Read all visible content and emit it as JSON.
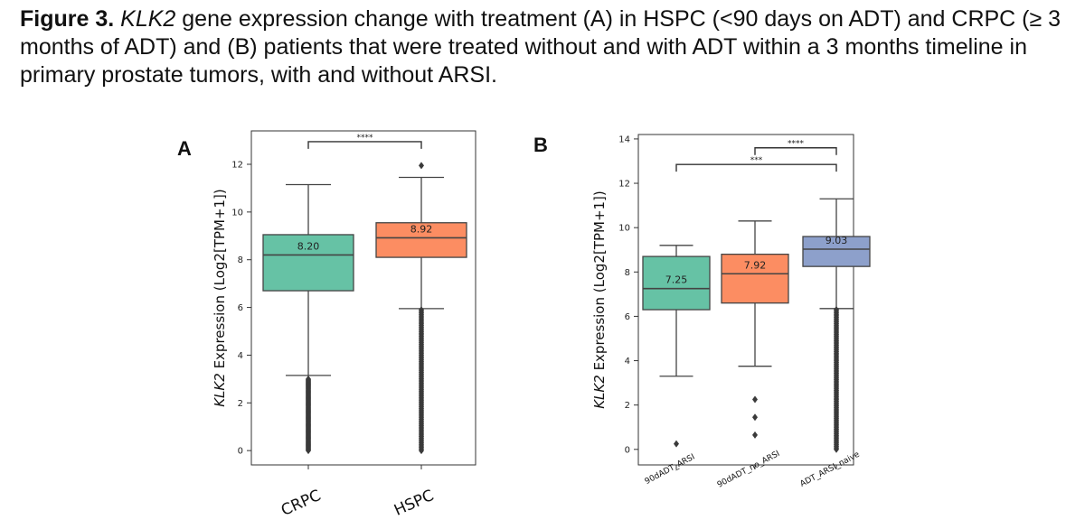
{
  "caption": {
    "lead": "Figure 3.",
    "gene": "KLK2",
    "text": " gene expression change with treatment (A) in HSPC (<90 days on ADT) and CRPC (≥ 3 months of ADT) and (B) patients that were treated without and with ADT within a 3 months timeline in primary prostate tumors, with and without ARSI."
  },
  "chart_data": [
    {
      "type": "box",
      "panel_label": "A",
      "ylabel_gene": "KLK2",
      "ylabel_rest": " Expression (Log2[TPM+1])",
      "yticks": [
        0,
        2,
        4,
        6,
        8,
        10,
        12
      ],
      "ylim": [
        -0.6,
        13.4
      ],
      "categories": [
        "CRPC",
        "HSPC"
      ],
      "boxes": [
        {
          "category": "CRPC",
          "q1": 6.7,
          "median": 8.2,
          "q3": 9.05,
          "whisker_low": 3.15,
          "whisker_high": 11.15,
          "median_label": "8.20",
          "color": "#66c2a5",
          "outliers_range": [
            0.0,
            3.0
          ],
          "outliers": []
        },
        {
          "category": "HSPC",
          "q1": 8.1,
          "median": 8.92,
          "q3": 9.55,
          "whisker_low": 5.95,
          "whisker_high": 11.45,
          "median_label": "8.92",
          "color": "#fc8d62",
          "outliers_range": [
            0.0,
            5.9
          ],
          "outliers": [
            11.95
          ]
        }
      ],
      "significance": [
        {
          "from": 0,
          "to": 1,
          "y": 12.95,
          "label": "****"
        }
      ]
    },
    {
      "type": "box",
      "panel_label": "B",
      "ylabel_gene": "KLK2",
      "ylabel_rest": " Expression (Log2[TPM+1])",
      "yticks": [
        0,
        2,
        4,
        6,
        8,
        10,
        12,
        14
      ],
      "ylim": [
        -0.7,
        14.2
      ],
      "categories": [
        "90dADT_ARSI",
        "90dADT_no_ARSI",
        "ADT_ARSI_naive"
      ],
      "boxes": [
        {
          "category": "90dADT_ARSI",
          "q1": 6.3,
          "median": 7.25,
          "q3": 8.7,
          "whisker_low": 3.3,
          "whisker_high": 9.2,
          "median_label": "7.25",
          "color": "#66c2a5",
          "outliers_range": null,
          "outliers": [
            0.25
          ]
        },
        {
          "category": "90dADT_no_ARSI",
          "q1": 6.6,
          "median": 7.92,
          "q3": 8.8,
          "whisker_low": 3.75,
          "whisker_high": 10.3,
          "median_label": "7.92",
          "color": "#fc8d62",
          "outliers_range": null,
          "outliers": [
            2.25,
            1.45,
            0.65
          ]
        },
        {
          "category": "ADT_ARSI_naive",
          "q1": 8.25,
          "median": 9.03,
          "q3": 9.6,
          "whisker_low": 6.35,
          "whisker_high": 11.3,
          "median_label": "9.03",
          "color": "#8da0cb",
          "outliers_range": [
            0.0,
            6.3
          ],
          "outliers": []
        }
      ],
      "significance": [
        {
          "from": 1,
          "to": 2,
          "y": 13.6,
          "label": "****"
        },
        {
          "from": 0,
          "to": 2,
          "y": 12.85,
          "label": "***"
        }
      ]
    }
  ]
}
